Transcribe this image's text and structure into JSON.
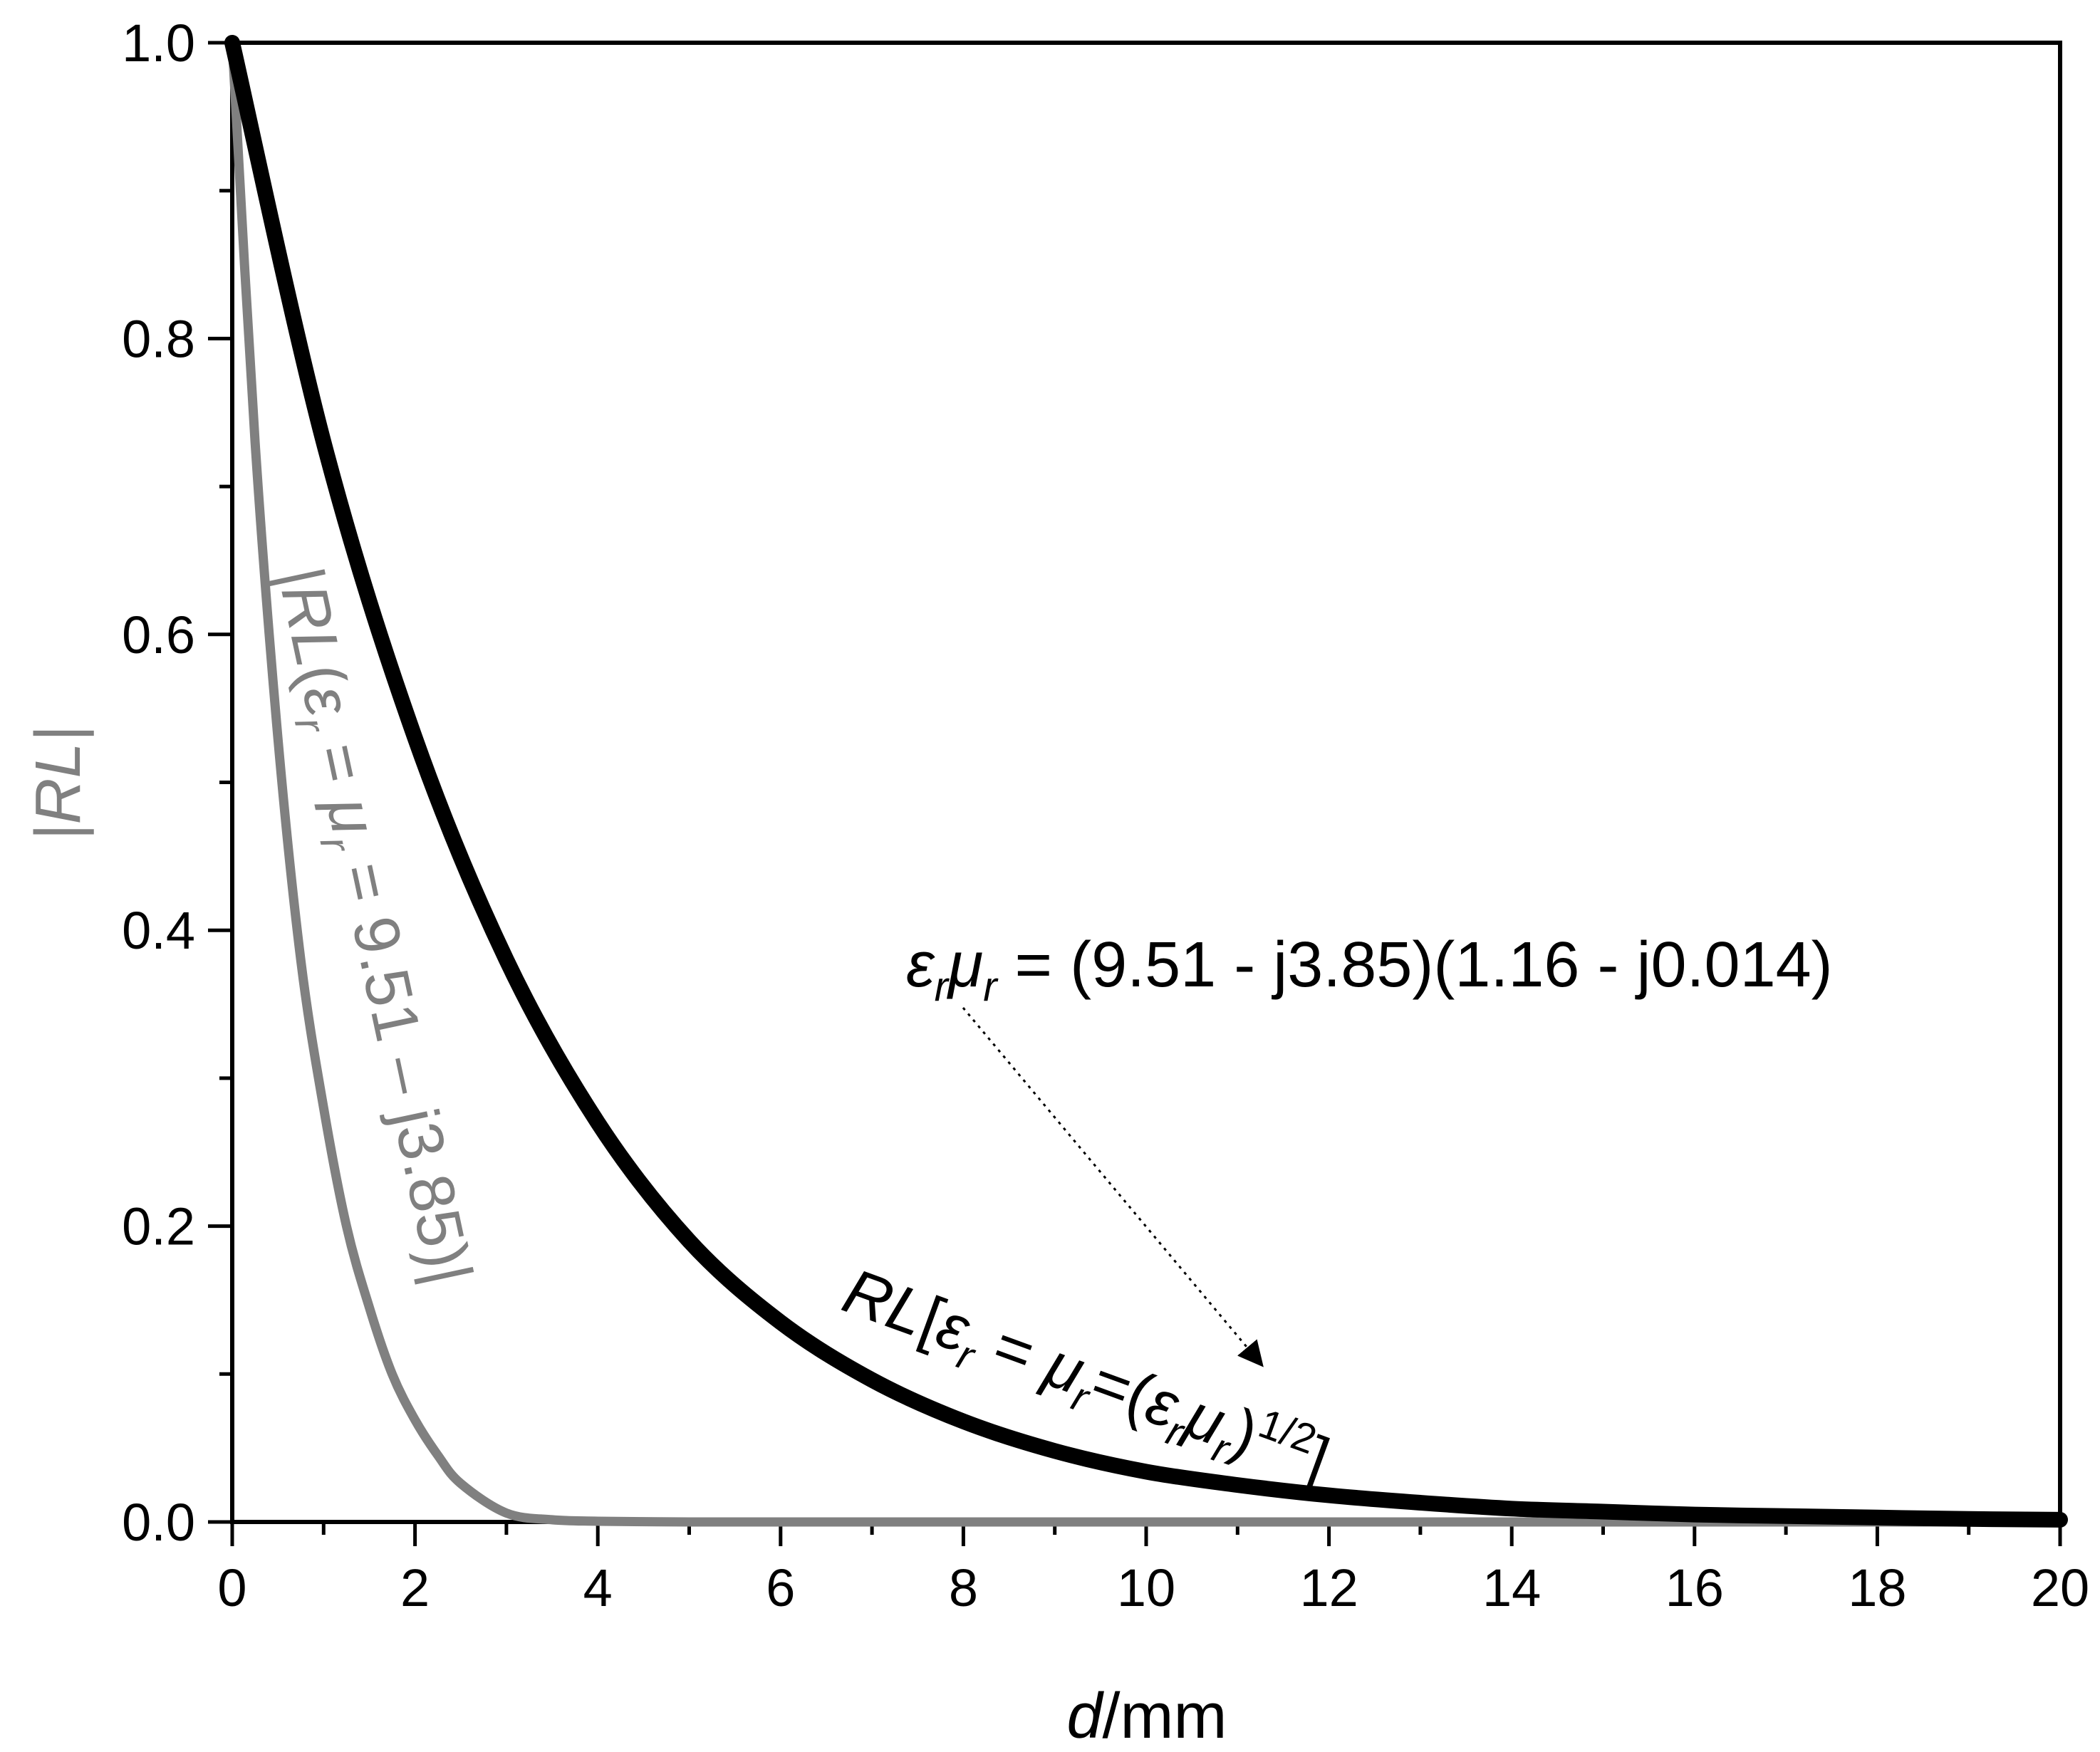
{
  "chart_data": {
    "type": "line",
    "title": "",
    "xlabel": {
      "italic": "d",
      "rest": "/mm"
    },
    "ylabel": "|RL|",
    "xlim": [
      0,
      20
    ],
    "ylim": [
      0,
      1.0
    ],
    "x_ticks": [
      0,
      2,
      4,
      6,
      8,
      10,
      12,
      14,
      16,
      18,
      20
    ],
    "x_tick_labels": [
      "0",
      "2",
      "4",
      "6",
      "8",
      "10",
      "12",
      "14",
      "16",
      "18",
      "20"
    ],
    "y_ticks": [
      0.0,
      0.2,
      0.4,
      0.6,
      0.8,
      1.0
    ],
    "y_tick_labels": [
      "0.0",
      "0.2",
      "0.4",
      "0.6",
      "0.8",
      "1.0"
    ],
    "grid": false,
    "series": [
      {
        "color": "#000000",
        "x": [
          0,
          1,
          2,
          3,
          4,
          5,
          6,
          7,
          8,
          9,
          10,
          11,
          12,
          13,
          14,
          15,
          16,
          17,
          18,
          19,
          20
        ],
        "y": [
          1.0,
          0.73,
          0.53,
          0.38,
          0.27,
          0.19,
          0.135,
          0.096,
          0.068,
          0.048,
          0.034,
          0.025,
          0.018,
          0.013,
          0.009,
          0.007,
          0.005,
          0.004,
          0.003,
          0.002,
          0.0015
        ]
      },
      {
        "color": "#808080",
        "x": [
          0,
          0.25,
          0.5,
          0.75,
          1,
          1.25,
          1.5,
          1.75,
          2,
          2.25,
          2.5,
          3,
          3.5,
          4,
          5,
          6,
          8,
          10,
          12,
          14,
          16,
          18,
          20
        ],
        "y": [
          1.0,
          0.73,
          0.53,
          0.38,
          0.28,
          0.2,
          0.145,
          0.1,
          0.069,
          0.045,
          0.026,
          0.006,
          0.0015,
          0.0005,
          0,
          0,
          0,
          0,
          0,
          0,
          0,
          0,
          0
        ]
      }
    ],
    "annotations": {
      "top_formula": {
        "eps": "ε",
        "r1": "r",
        "mu": "μ",
        "r2": "r",
        "rest": " = (9.51 -  j3.85)(1.16 - j0.014)"
      },
      "black_label": {
        "rl": "RL",
        "p1": "[",
        "eps": "ε",
        "r1": "r",
        "eq1": " = ",
        "mu": "μ",
        "r2": "r",
        "eq2": "=(",
        "eps2": "ε",
        "r3": "r",
        "mu2": "μ",
        "r4": "r",
        "close": ")",
        "exp": "1/2",
        "end": "]"
      },
      "gray_label": {
        "p0": "|",
        "rl": "RL",
        "p1": "(",
        "eps": "ε",
        "r1": "r",
        "eq1": " = ",
        "mu": "μ",
        "r2": "r",
        "rest": " = 9.51 – j3.85)|"
      }
    },
    "colors": {
      "axis": "#000000",
      "primary_series": "#000000",
      "secondary_series": "#808080"
    }
  }
}
